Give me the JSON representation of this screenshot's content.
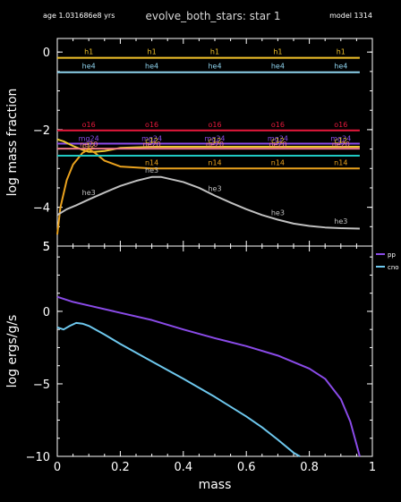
{
  "header": {
    "age": "age 1.031686e8 yrs",
    "title": "evolve_both_stars: star 1",
    "model": "model 1314"
  },
  "chart_data": [
    {
      "type": "line",
      "ylabel": "log mass fraction",
      "xlim": [
        0,
        1
      ],
      "ylim": [
        -5,
        0.35
      ],
      "yticks": [
        0,
        -2,
        -4
      ],
      "ytick_labels": [
        "0",
        "−2",
        "−4"
      ],
      "ylim_label": "5",
      "series": [
        {
          "name": "h1",
          "color": "#f2c32a",
          "x": [
            0,
            0.25,
            0.5,
            0.75,
            0.96
          ],
          "y": [
            -0.15,
            -0.15,
            -0.15,
            -0.15,
            -0.15
          ],
          "labels_x": [
            0.1,
            0.3,
            0.5,
            0.7,
            0.9
          ],
          "label_dy": -4
        },
        {
          "name": "he4",
          "color": "#8ed3ee",
          "x": [
            0,
            0.25,
            0.5,
            0.75,
            0.96
          ],
          "y": [
            -0.52,
            -0.52,
            -0.52,
            -0.52,
            -0.52
          ],
          "labels_x": [
            0.1,
            0.3,
            0.5,
            0.7,
            0.9
          ],
          "label_dy": -4
        },
        {
          "name": "o16",
          "color": "#e8193c",
          "x": [
            0,
            0.25,
            0.5,
            0.75,
            0.96
          ],
          "y": [
            -2.02,
            -2.02,
            -2.02,
            -2.02,
            -2.02
          ],
          "labels_x": [
            0.1,
            0.3,
            0.5,
            0.7,
            0.9
          ],
          "label_dy": -4
        },
        {
          "name": "mg24",
          "color": "#8a4be8",
          "x": [
            0,
            0.25,
            0.5,
            0.75,
            0.96
          ],
          "y": [
            -2.36,
            -2.36,
            -2.36,
            -2.36,
            -2.36
          ],
          "labels_x": [
            0.1,
            0.3,
            0.5,
            0.7,
            0.9
          ],
          "label_dy": -3
        },
        {
          "name": "c12",
          "color": "#e8c72e",
          "x": [
            0,
            0.02,
            0.05,
            0.08,
            0.1,
            0.12,
            0.15,
            0.2,
            0.3,
            0.5,
            0.96
          ],
          "y": [
            -2.25,
            -2.3,
            -2.42,
            -2.52,
            -2.57,
            -2.57,
            -2.55,
            -2.47,
            -2.44,
            -2.44,
            -2.44
          ],
          "labels_x": [
            0.1,
            0.3,
            0.5,
            0.7,
            0.9
          ],
          "label_dy": -4
        },
        {
          "name": "ne20",
          "color": "#ee7a8a",
          "x": [
            0,
            0.25,
            0.5,
            0.75,
            0.96
          ],
          "y": [
            -2.49,
            -2.49,
            -2.49,
            -2.49,
            -2.49
          ],
          "labels_x": [
            0.1,
            0.3,
            0.5,
            0.7,
            0.9
          ],
          "label_dy": -2
        },
        {
          "name": "n14",
          "color": "#eaa21e",
          "x": [
            0,
            0.01,
            0.03,
            0.05,
            0.08,
            0.1,
            0.12,
            0.15,
            0.2,
            0.3,
            0.5,
            0.96
          ],
          "y": [
            -4.7,
            -4.0,
            -3.3,
            -2.9,
            -2.6,
            -2.5,
            -2.6,
            -2.8,
            -2.95,
            -3.0,
            -3.0,
            -3.0
          ],
          "labels_x": [
            0.3,
            0.5,
            0.7,
            0.9
          ],
          "label_dy": -4
        },
        {
          "name": "",
          "color": "#1fc9c3",
          "x": [
            0,
            0.25,
            0.5,
            0.75,
            0.96
          ],
          "y": [
            -2.67,
            -2.67,
            -2.67,
            -2.67,
            -2.67
          ],
          "labels_x": [],
          "label_dy": 0
        },
        {
          "name": "he3",
          "color": "#c0c0c0",
          "x": [
            0,
            0.03,
            0.06,
            0.1,
            0.15,
            0.2,
            0.25,
            0.3,
            0.33,
            0.4,
            0.45,
            0.5,
            0.55,
            0.6,
            0.65,
            0.7,
            0.75,
            0.8,
            0.85,
            0.9,
            0.96
          ],
          "y": [
            -4.2,
            -4.05,
            -3.95,
            -3.8,
            -3.62,
            -3.45,
            -3.32,
            -3.22,
            -3.22,
            -3.35,
            -3.5,
            -3.7,
            -3.88,
            -4.05,
            -4.2,
            -4.32,
            -4.42,
            -4.48,
            -4.52,
            -4.54,
            -4.55
          ],
          "labels_x": [
            0.1,
            0.3,
            0.5,
            0.7,
            0.9
          ],
          "label_dy": -5
        }
      ]
    },
    {
      "type": "line",
      "ylabel": "log ergs/g/s",
      "xlabel": "mass",
      "xlim": [
        0,
        1
      ],
      "ylim": [
        -10,
        4.5
      ],
      "yticks": [
        0,
        -5,
        -10
      ],
      "ytick_labels": [
        "0",
        "−5",
        "−10"
      ],
      "ylim_label": "5",
      "xticks": [
        0,
        0.2,
        0.4,
        0.6,
        0.8,
        1
      ],
      "xtick_labels": [
        "0",
        "0.2",
        "0.4",
        "0.6",
        "0.8",
        "1"
      ],
      "legend_position": "right",
      "series": [
        {
          "name": "pp",
          "color": "#8a4be8",
          "x": [
            0,
            0.05,
            0.1,
            0.2,
            0.3,
            0.4,
            0.5,
            0.6,
            0.7,
            0.8,
            0.85,
            0.9,
            0.93,
            0.95,
            0.96
          ],
          "y": [
            1.0,
            0.65,
            0.4,
            -0.1,
            -0.6,
            -1.25,
            -1.85,
            -2.4,
            -3.05,
            -3.95,
            -4.65,
            -6.05,
            -7.6,
            -9.2,
            -10
          ]
        },
        {
          "name": "cno",
          "color": "#6ec8ee",
          "x": [
            0,
            0.02,
            0.04,
            0.06,
            0.08,
            0.1,
            0.15,
            0.2,
            0.3,
            0.4,
            0.5,
            0.6,
            0.65,
            0.7,
            0.75,
            0.77
          ],
          "y": [
            -1.1,
            -1.25,
            -1.0,
            -0.8,
            -0.85,
            -1.0,
            -1.6,
            -2.25,
            -3.45,
            -4.65,
            -5.9,
            -7.25,
            -8.0,
            -8.85,
            -9.75,
            -10
          ]
        }
      ]
    }
  ]
}
